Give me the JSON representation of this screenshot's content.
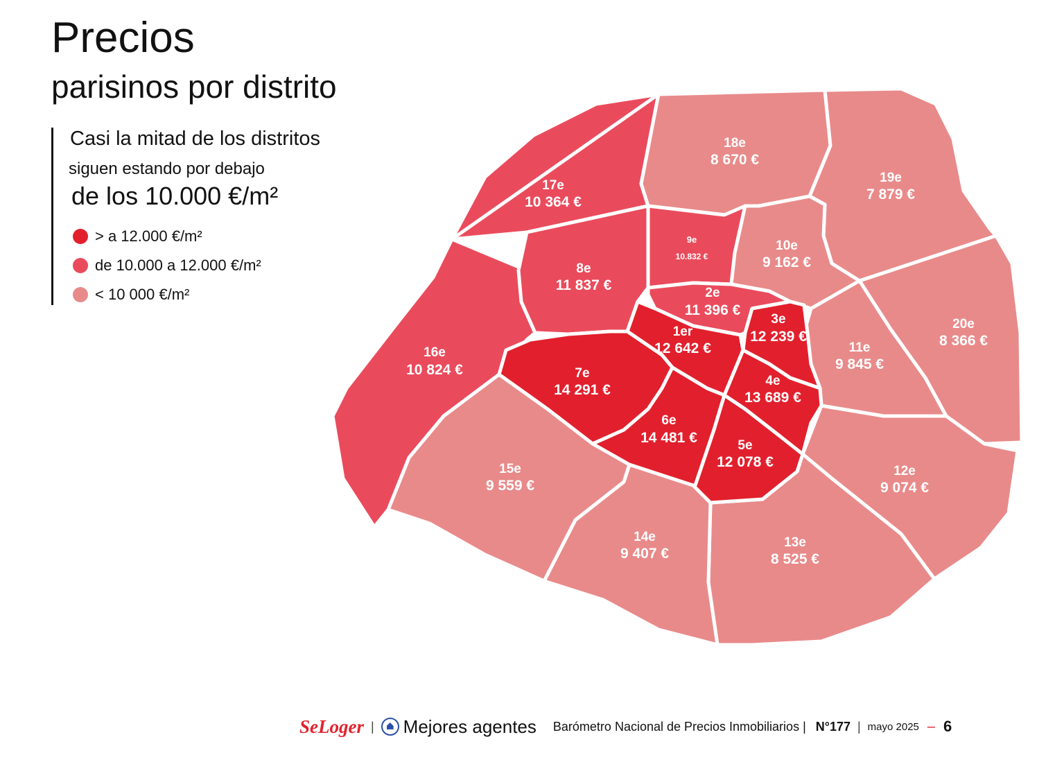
{
  "heading": {
    "line1": "Precios",
    "line2": "parisinos por distrito"
  },
  "subtitle": {
    "line1": "Casi la mitad de los distritos",
    "line2": "siguen estando por debajo",
    "line3": "de los 10.000 €/m²"
  },
  "legend": [
    {
      "label": "> a 12.000 €/m²",
      "color": "#e2202d"
    },
    {
      "label": "de 10.000 a 12.000 €/m²",
      "color": "#ea4b5c"
    },
    {
      "label": "< 10 000 €/m²",
      "color": "#e98a8a"
    }
  ],
  "colors": {
    "high": "#e2202d",
    "mid": "#ea4b5c",
    "low": "#e98a8a"
  },
  "districts": {
    "d1": {
      "name": "1er",
      "price": "12 642 €",
      "level": "high"
    },
    "d2": {
      "name": "2e",
      "price": "11 396 €",
      "level": "mid"
    },
    "d3": {
      "name": "3e",
      "price": "12 239 €",
      "level": "high"
    },
    "d4": {
      "name": "4e",
      "price": "13 689 €",
      "level": "high"
    },
    "d5": {
      "name": "5e",
      "price": "12 078 €",
      "level": "high"
    },
    "d6": {
      "name": "6e",
      "price": "14 481 €",
      "level": "high"
    },
    "d7": {
      "name": "7e",
      "price": "14 291 €",
      "level": "high"
    },
    "d8": {
      "name": "8e",
      "price": "11 837 €",
      "level": "mid"
    },
    "d9": {
      "name": "9e",
      "price": "10.832 €",
      "level": "mid"
    },
    "d10": {
      "name": "10e",
      "price": "9 162 €",
      "level": "low"
    },
    "d11": {
      "name": "11e",
      "price": "9 845 €",
      "level": "low"
    },
    "d12": {
      "name": "12e",
      "price": "9 074 €",
      "level": "low"
    },
    "d13": {
      "name": "13e",
      "price": "8 525 €",
      "level": "low"
    },
    "d14": {
      "name": "14e",
      "price": "9 407 €",
      "level": "low"
    },
    "d15": {
      "name": "15e",
      "price": "9 559 €",
      "level": "low"
    },
    "d16": {
      "name": "16e",
      "price": "10 824 €",
      "level": "mid"
    },
    "d17": {
      "name": "17e",
      "price": "10 364 €",
      "level": "mid"
    },
    "d18": {
      "name": "18e",
      "price": "8 670 €",
      "level": "low"
    },
    "d19": {
      "name": "19e",
      "price": "7 879 €",
      "level": "low"
    },
    "d20": {
      "name": "20e",
      "price": "8 366 €",
      "level": "low"
    }
  },
  "footer": {
    "brand": "SeLoger",
    "agents": "Mejores agentes",
    "barometer": "Barómetro Nacional de Precios Inmobiliarios |",
    "issue": "N°177",
    "date": "mayo 2025",
    "page": "6"
  }
}
